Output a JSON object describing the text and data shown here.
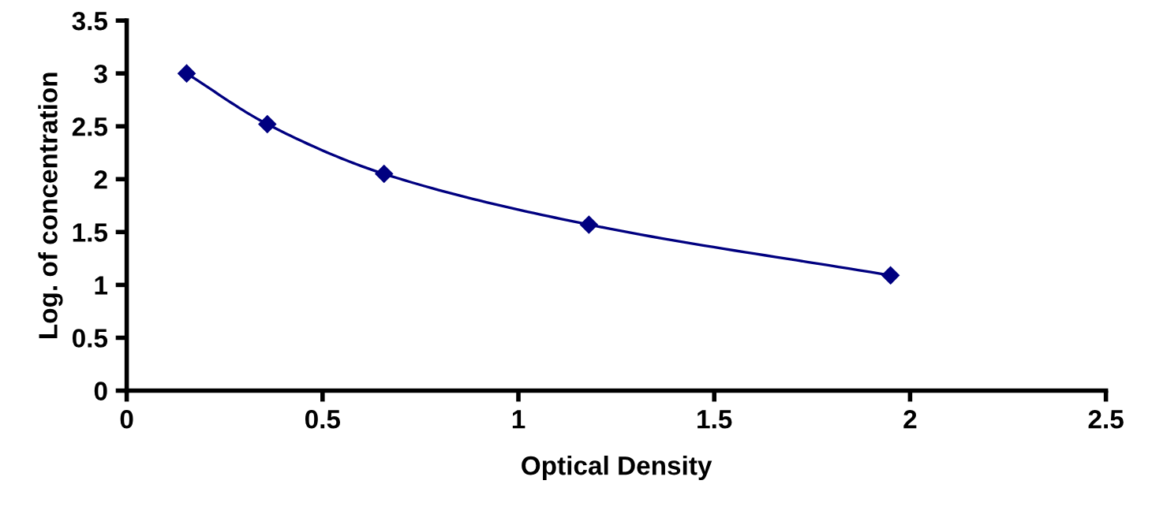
{
  "chart_data": {
    "type": "line",
    "xlabel": "Optical Density",
    "ylabel": "Log. of concentration",
    "x": [
      0.153,
      0.359,
      0.657,
      1.18,
      1.95
    ],
    "series": [
      {
        "color": "#000080",
        "values": [
          3.0,
          2.52,
          2.05,
          1.57,
          1.09
        ]
      }
    ],
    "marker": "diamond",
    "line_style": "solid",
    "grid": false,
    "legend": false,
    "xlim": [
      0,
      2.5
    ],
    "xticks": [
      0,
      0.5,
      1,
      1.5,
      2,
      2.5
    ],
    "ylim": [
      0,
      3.5
    ],
    "yticks": [
      0,
      0.5,
      1,
      1.5,
      2,
      2.5,
      3,
      3.5
    ]
  }
}
